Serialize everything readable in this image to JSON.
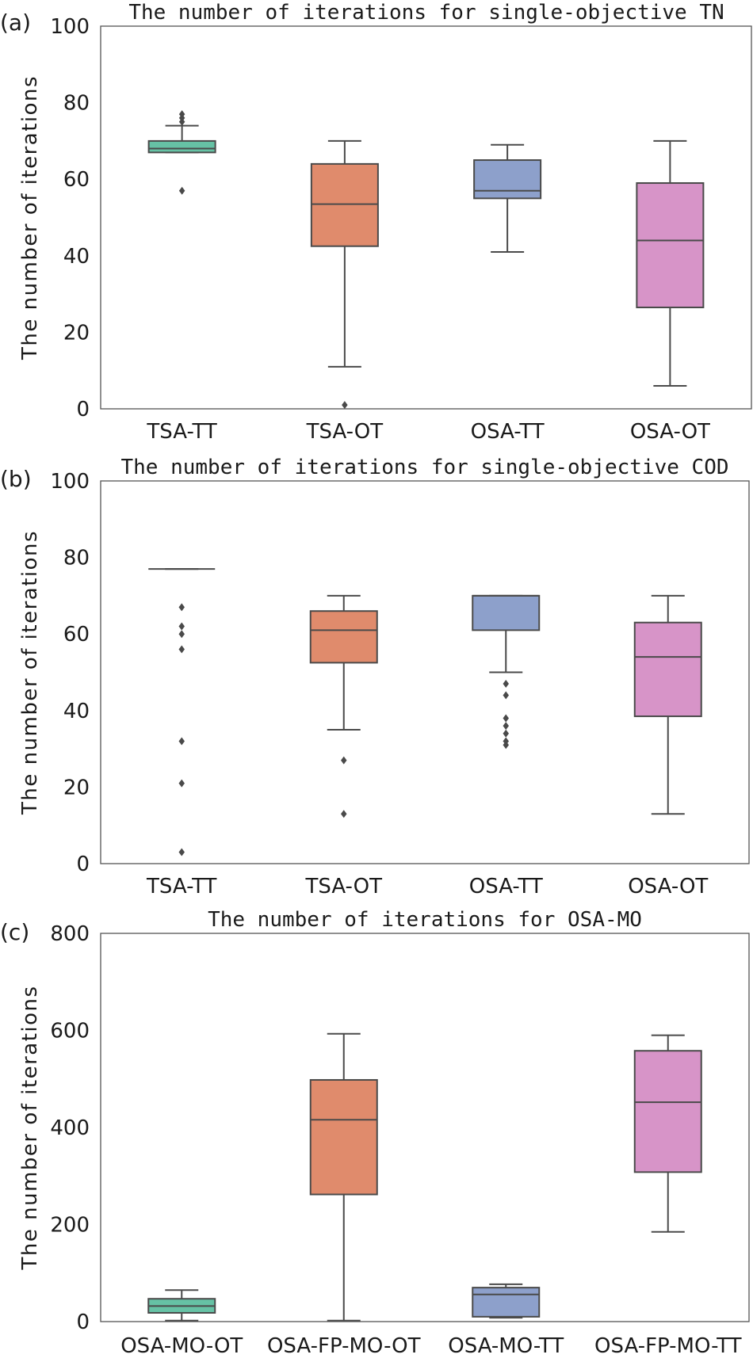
{
  "chart_data": [
    {
      "type": "box",
      "panel_label": "(a)",
      "title": "The number of iterations for single-objective TN",
      "xlabel": "",
      "ylabel": "The number of iterations",
      "ylim": [
        0,
        100
      ],
      "yticks": [
        0,
        20,
        40,
        60,
        80,
        100
      ],
      "categories": [
        "TSA-TT",
        "TSA-OT",
        "OSA-TT",
        "OSA-OT"
      ],
      "colors": [
        "#66c2a5",
        "#e08b6c",
        "#8da0cb",
        "#d794c8"
      ],
      "boxes": [
        {
          "whisker_low": 67,
          "q1": 67,
          "median": 68,
          "q3": 70,
          "whisker_high": 74,
          "fliers": [
            57,
            75,
            76,
            77
          ]
        },
        {
          "whisker_low": 11,
          "q1": 42.5,
          "median": 53.5,
          "q3": 64,
          "whisker_high": 70,
          "fliers": [
            1
          ]
        },
        {
          "whisker_low": 41,
          "q1": 55,
          "median": 57,
          "q3": 65,
          "whisker_high": 69,
          "fliers": []
        },
        {
          "whisker_low": 6,
          "q1": 26.5,
          "median": 44,
          "q3": 59,
          "whisker_high": 70,
          "fliers": []
        }
      ]
    },
    {
      "type": "box",
      "panel_label": "(b)",
      "title": "The number of iterations for single-objective COD",
      "xlabel": "",
      "ylabel": "The number of iterations",
      "ylim": [
        0,
        100
      ],
      "yticks": [
        0,
        20,
        40,
        60,
        80,
        100
      ],
      "categories": [
        "TSA-TT",
        "TSA-OT",
        "OSA-TT",
        "OSA-OT"
      ],
      "colors": [
        "#66c2a5",
        "#e08b6c",
        "#8da0cb",
        "#d794c8"
      ],
      "boxes": [
        {
          "whisker_low": 77,
          "q1": 77,
          "median": 77,
          "q3": 77,
          "whisker_high": 77,
          "fliers": [
            3,
            21,
            32,
            56,
            60,
            62,
            67
          ]
        },
        {
          "whisker_low": 35,
          "q1": 52.5,
          "median": 61,
          "q3": 66,
          "whisker_high": 70,
          "fliers": [
            13,
            27
          ]
        },
        {
          "whisker_low": 50,
          "q1": 61,
          "median": 70,
          "q3": 70,
          "whisker_high": 70,
          "fliers": [
            31,
            32,
            34,
            36,
            38,
            44,
            47
          ]
        },
        {
          "whisker_low": 13,
          "q1": 38.5,
          "median": 54,
          "q3": 63,
          "whisker_high": 70,
          "fliers": []
        }
      ]
    },
    {
      "type": "box",
      "panel_label": "(c)",
      "title": "The number of iterations for OSA-MO",
      "xlabel": "",
      "ylabel": "The number of iterations",
      "ylim": [
        0,
        800
      ],
      "yticks": [
        0,
        200,
        400,
        600,
        800
      ],
      "categories": [
        "OSA-MO-OT",
        "OSA-FP-MO-OT",
        "OSA-MO-TT",
        "OSA-FP-MO-TT"
      ],
      "colors": [
        "#66c2a5",
        "#e08b6c",
        "#8da0cb",
        "#d794c8"
      ],
      "boxes": [
        {
          "whisker_low": 2,
          "q1": 18,
          "median": 32,
          "q3": 47,
          "whisker_high": 65,
          "fliers": []
        },
        {
          "whisker_low": 2,
          "q1": 262,
          "median": 416,
          "q3": 498,
          "whisker_high": 593,
          "fliers": []
        },
        {
          "whisker_low": 8,
          "q1": 10,
          "median": 56,
          "q3": 70,
          "whisker_high": 77,
          "fliers": []
        },
        {
          "whisker_low": 185,
          "q1": 308,
          "median": 452,
          "q3": 558,
          "whisker_high": 590,
          "fliers": []
        }
      ]
    }
  ]
}
